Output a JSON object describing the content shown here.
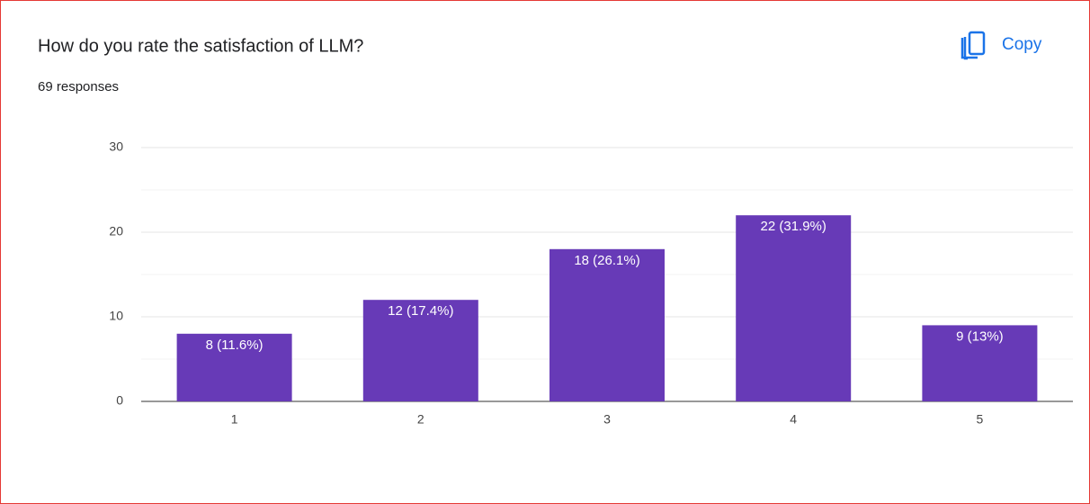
{
  "copy_button": "Copy",
  "chart_data": {
    "type": "bar",
    "title": "How do you rate the satisfaction of LLM?",
    "subtitle": "69 responses",
    "categories": [
      "1",
      "2",
      "3",
      "4",
      "5"
    ],
    "values": [
      8,
      12,
      18,
      22,
      9
    ],
    "value_labels": [
      "8 (11.6%)",
      "12 (17.4%)",
      "18 (26.1%)",
      "22 (31.9%)",
      "9 (13%)"
    ],
    "color": "#673ab7",
    "ylim": [
      0,
      30
    ],
    "yticks": [
      0,
      10,
      20,
      30
    ],
    "minor_yticks": [
      5,
      15,
      25
    ],
    "grid": true
  }
}
